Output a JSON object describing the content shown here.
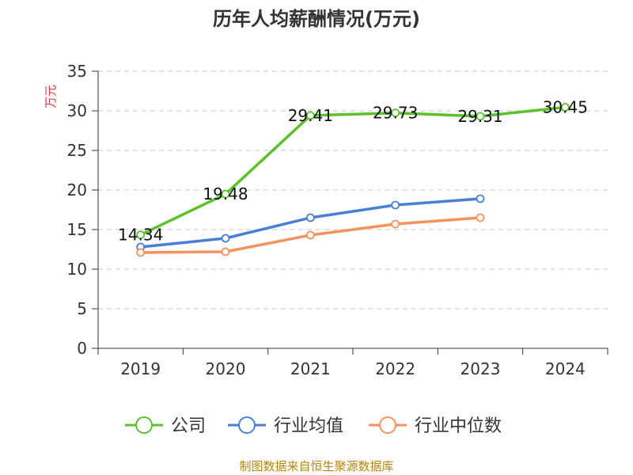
{
  "chart_data": {
    "type": "line",
    "title": "历年人均薪酬情况(万元)",
    "ylabel": "万元",
    "xlabel": "",
    "categories": [
      "2019",
      "2020",
      "2021",
      "2022",
      "2023",
      "2024"
    ],
    "ylim": [
      0,
      35
    ],
    "yticks": [
      0,
      5,
      10,
      15,
      20,
      25,
      30,
      35
    ],
    "grid": true,
    "legend_position": "bottom",
    "series": [
      {
        "name": "公司",
        "color": "#5cc22b",
        "values": [
          14.34,
          19.48,
          29.41,
          29.73,
          29.31,
          30.45
        ],
        "labels": [
          "14.34",
          "19.48",
          "29.41",
          "29.73",
          "29.31",
          "30.45"
        ]
      },
      {
        "name": "行业均值",
        "color": "#4a7fd8",
        "values": [
          12.8,
          13.9,
          16.5,
          18.1,
          18.9,
          null
        ]
      },
      {
        "name": "行业中位数",
        "color": "#f5925e",
        "values": [
          12.1,
          12.2,
          14.3,
          15.7,
          16.5,
          null
        ]
      }
    ],
    "source": "制图数据来自恒生聚源数据库"
  }
}
